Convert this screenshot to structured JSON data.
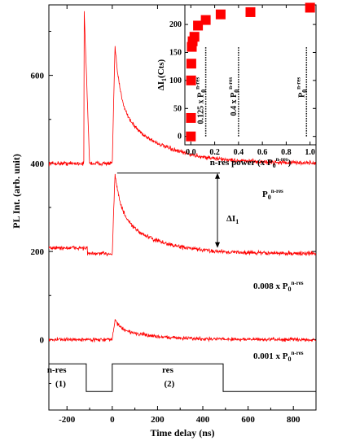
{
  "colors": {
    "trace": "#ff0000",
    "axis": "#000000",
    "marker": "#ff0000"
  },
  "chart_data": [
    {
      "type": "line",
      "xlabel": "Time delay (ns)",
      "ylabel": "PL Int. (arb. unit)",
      "xlim": [
        -280,
        900
      ],
      "ylim": [
        -160,
        760
      ],
      "xticks": [
        -200,
        0,
        200,
        400,
        600,
        800
      ],
      "yticks": [
        0,
        200,
        400,
        600
      ],
      "series": [
        {
          "name": "P₀ⁿ⁻ʳᵉˢ",
          "label_base": "P",
          "label_sub": "0",
          "label_sup": "n-res",
          "baseline": 400,
          "pre_level": 400,
          "pre_peak": 760,
          "peak": 665,
          "tail_amp": 130,
          "tail_tau": 180
        },
        {
          "name": "0.008 x P₀ⁿ⁻ʳᵉˢ",
          "label_base": "0.008 x P",
          "label_sub": "0",
          "label_sup": "n-res",
          "baseline": 195,
          "pre_level": 208,
          "pre_peak": 208,
          "peak": 378,
          "tail_amp": 95,
          "tail_tau": 160
        },
        {
          "name": "0.001 x P₀ⁿ⁻ʳᵉˢ",
          "label_base": "0.001 x P",
          "label_sub": "0",
          "label_sup": "n-res",
          "baseline": 0,
          "pre_level": 0,
          "pre_peak": 0,
          "peak": 45,
          "tail_amp": 25,
          "tail_tau": 150
        }
      ],
      "annotation": {
        "label_base": "ΔI",
        "label_sub": "1",
        "x_start": 0,
        "x_end": 640,
        "y_top": 378,
        "y_bottom": 208
      },
      "pulse_scheme": {
        "high": -55,
        "low": -118,
        "segments": [
          {
            "x0": -280,
            "x1": -115,
            "level": "high"
          },
          {
            "x0": -115,
            "x1": 0,
            "level": "low"
          },
          {
            "x0": 0,
            "x1": 490,
            "level": "high"
          },
          {
            "x0": 490,
            "x1": 900,
            "level": "low"
          }
        ],
        "labels": [
          {
            "text": "n-res",
            "x": -245,
            "y": -75
          },
          {
            "text": "(1)",
            "x": -228,
            "y": -106
          },
          {
            "text": "res",
            "x": 245,
            "y": -75
          },
          {
            "text": "(2)",
            "x": 252,
            "y": -106
          }
        ]
      }
    },
    {
      "type": "scatter",
      "xlabel_base": "n-res power (x P",
      "xlabel_sub": "0",
      "xlabel_sup": "n-res",
      "xlabel_end": ")",
      "ylabel_base": "ΔI",
      "ylabel_sub": "1",
      "ylabel_end": "(Cts)",
      "xlim": [
        -0.05,
        1.05
      ],
      "ylim": [
        -15,
        235
      ],
      "xticks": [
        "0.0",
        "0.2",
        "0.4",
        "0.6",
        "0.8",
        "1.0"
      ],
      "yticks": [
        "0",
        "50",
        "100",
        "150",
        "200"
      ],
      "x": [
        0.0,
        0.001,
        0.002,
        0.004,
        0.008,
        0.015,
        0.03,
        0.06,
        0.125,
        0.25,
        0.5,
        1.0
      ],
      "y": [
        0,
        33,
        100,
        130,
        160,
        170,
        178,
        198,
        208,
        218,
        222,
        230
      ],
      "vlines": [
        {
          "x": 0.125,
          "label_base": "0.125 x P",
          "label_sub": "0",
          "label_sup": "n-res"
        },
        {
          "x": 0.4,
          "label_base": "0.4 x P",
          "label_sub": "0",
          "label_sup": "n-res"
        },
        {
          "x": 0.97,
          "label_base": "P",
          "label_sub": "0",
          "label_sup": "n-res"
        }
      ]
    }
  ]
}
